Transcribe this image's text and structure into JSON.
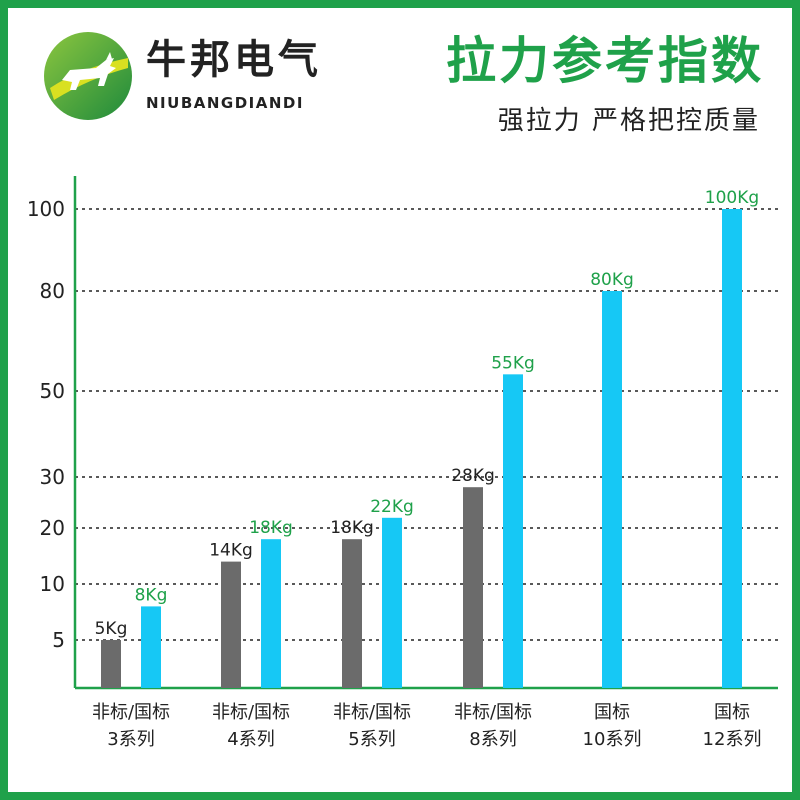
{
  "header": {
    "brand_name": "牛邦电气",
    "brand_pinyin": "NIUBANGDIANDI",
    "title": "拉力参考指数",
    "subtitle": "强拉力 严格把控质量"
  },
  "colors": {
    "accent": "#1fa14a",
    "non_standard_bar": "#6b6b6b",
    "standard_bar": "#16c8f5",
    "gridline": "#222222",
    "label_green": "#1fa14a",
    "label_dark": "#222222"
  },
  "chart_data": {
    "type": "bar",
    "title": "",
    "xlabel": "",
    "ylabel": "",
    "y_ticks": [
      5,
      10,
      20,
      30,
      50,
      80,
      100
    ],
    "grid": "dashed horizontal at each tick",
    "legend": "none",
    "categories": [
      {
        "line1": "非标/国标",
        "line2": "3系列"
      },
      {
        "line1": "非标/国标",
        "line2": "4系列"
      },
      {
        "line1": "非标/国标",
        "line2": "5系列"
      },
      {
        "line1": "非标/国标",
        "line2": "8系列"
      },
      {
        "line1": "国标",
        "line2": "10系列"
      },
      {
        "line1": "国标",
        "line2": "12系列"
      }
    ],
    "series": [
      {
        "key": "non_standard",
        "values": [
          5,
          14,
          18,
          28,
          null,
          null
        ],
        "labels": [
          "5Kg",
          "14Kg",
          "18Kg",
          "28Kg",
          null,
          null
        ]
      },
      {
        "key": "standard",
        "values": [
          8,
          18,
          22,
          55,
          80,
          100
        ],
        "labels": [
          "8Kg",
          "18Kg",
          "22Kg",
          "55Kg",
          "80Kg",
          "100Kg"
        ]
      }
    ]
  }
}
